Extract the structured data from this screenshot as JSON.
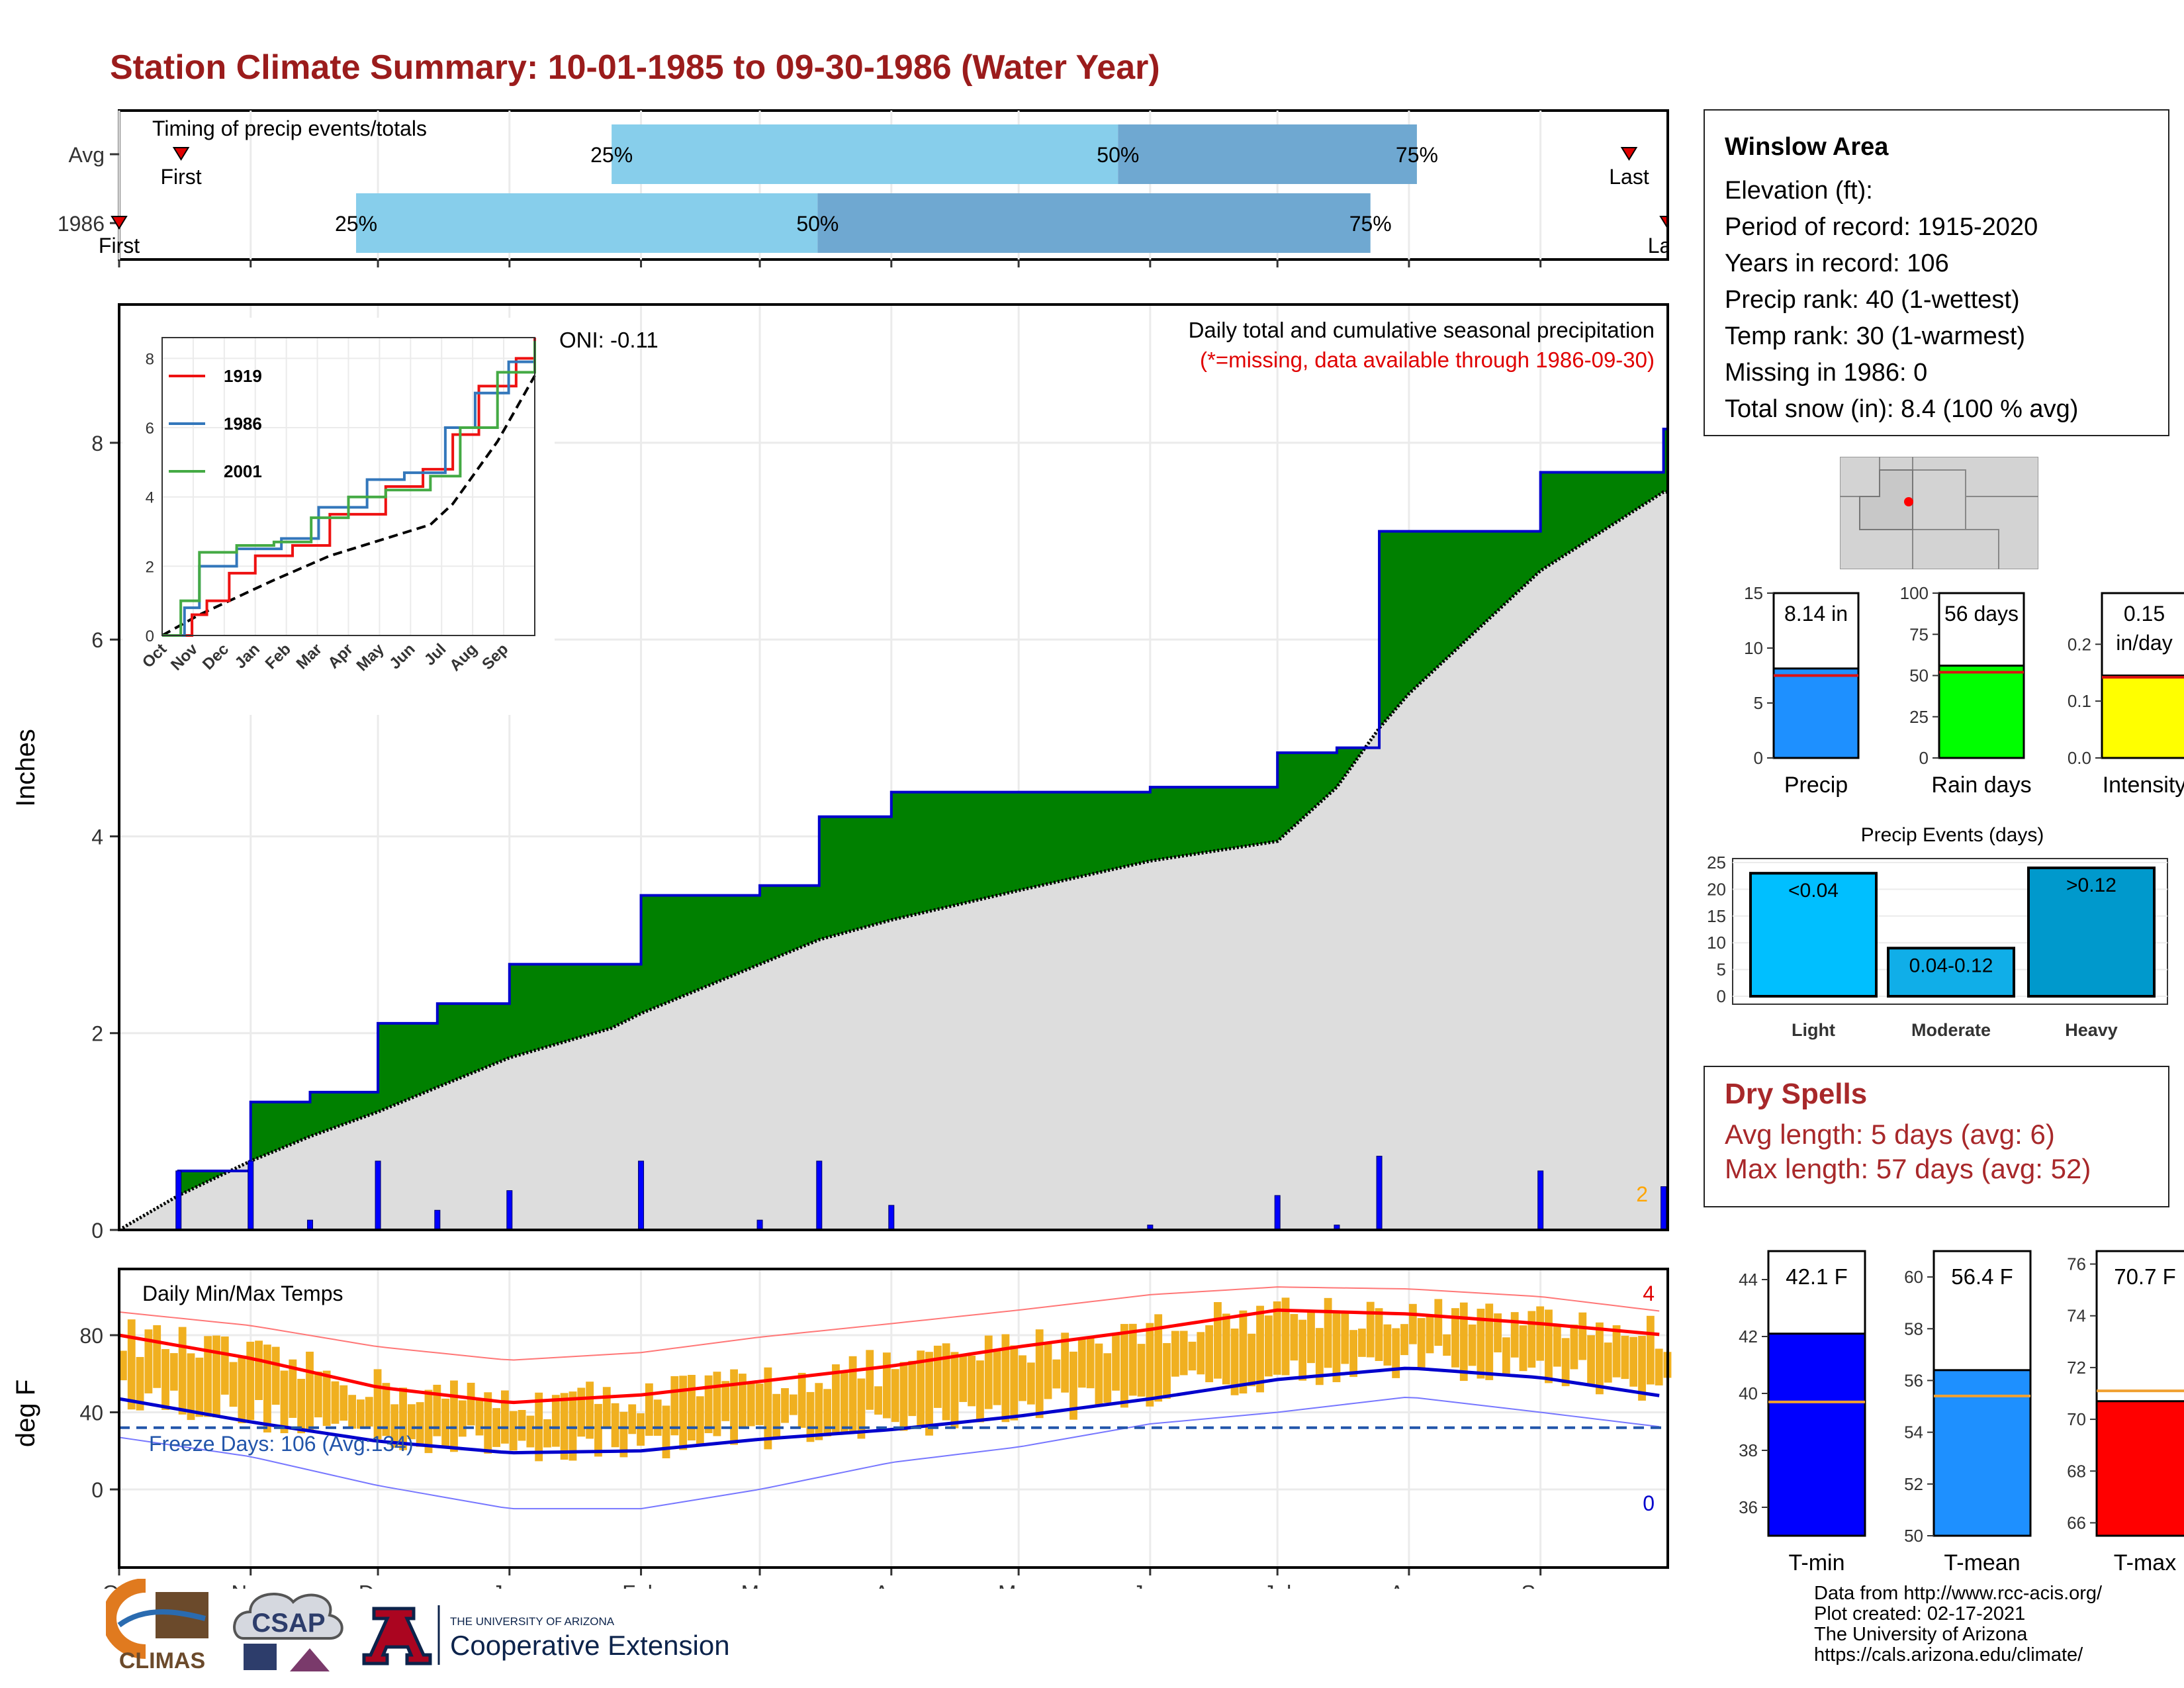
{
  "title": "Station Climate Summary: 10-01-1985 to 09-30-1986 (Water Year)",
  "timing": {
    "label": "Timing of precip events/totals",
    "rows": [
      {
        "name": "Avg",
        "first": 0.04,
        "last": 0.975,
        "p25": 0.318,
        "p50": 0.645,
        "p75": 0.838
      },
      {
        "name": "1986",
        "first": 0.0,
        "last": 1.0,
        "p25": 0.153,
        "p50": 0.451,
        "p75": 0.808
      }
    ],
    "first_label": "First",
    "last_label": "Last",
    "p25_label": "25%",
    "p50_label": "50%",
    "p75_label": "75%",
    "colors": {
      "light": "#87ceeb",
      "dark": "#6fa8d1",
      "marker": "#e00000"
    }
  },
  "precip": {
    "ylabel": "Inches",
    "title": "Daily total and cumulative seasonal precipitation",
    "subtitle": "(*=missing, data available through 1986-09-30)",
    "oni": "ONI: -0.11",
    "corner_label": "2",
    "yticks": [
      "0",
      "2",
      "4",
      "6",
      "8"
    ],
    "colors": {
      "cum": "#008000",
      "avg": "#dddddd",
      "line": "#0000cc",
      "daily": "#0000ff",
      "missing": "#ffa500"
    }
  },
  "inset": {
    "legend": [
      "1919",
      "1986",
      "2001"
    ],
    "legend_colors": [
      "#ee1111",
      "#3377bb",
      "#44aa44"
    ],
    "yticks": [
      "0",
      "2",
      "4",
      "6",
      "8"
    ],
    "xticks": [
      "Oct",
      "Nov",
      "Dec",
      "Jan",
      "Feb",
      "Mar",
      "Apr",
      "May",
      "Jun",
      "Jul",
      "Aug",
      "Sep"
    ]
  },
  "temps": {
    "ylabel": "deg F",
    "title": "Daily Min/Max Temps",
    "freeze": "Freeze Days: 106 (Avg:134)",
    "max_count": "4",
    "min_count": "0",
    "yticks": [
      "0",
      "40",
      "80"
    ],
    "xticks": [
      "Oct",
      "Nov",
      "Dec",
      "Jan",
      "Feb",
      "Mar",
      "Apr",
      "May",
      "Jun",
      "Jul",
      "Aug",
      "Sep"
    ],
    "colors": {
      "bars": "#f0b020",
      "avgmax": "#ff0000",
      "avgmin": "#0000cc",
      "freeze": "#2255aa"
    }
  },
  "station": {
    "name": "Winslow Area",
    "lines": [
      "Elevation (ft):",
      "Period of record: 1915-2020",
      "Years in record: 106",
      "Precip rank: 40 (1-wettest)",
      "Temp rank: 30 (1-warmest)",
      "Missing in 1986: 0",
      "Total snow (in): 8.4 (100 % avg)"
    ]
  },
  "gauges": [
    {
      "name": "Precip",
      "value": 8.14,
      "label": "8.14 in",
      "avg": 7.5,
      "ymax": 15,
      "ticks": [
        "0",
        "5",
        "10",
        "15"
      ],
      "tickvals": [
        0,
        5,
        10,
        15
      ],
      "color": "#1e90ff"
    },
    {
      "name": "Rain days",
      "value": 56,
      "label": "56 days",
      "avg": 52,
      "ymax": 100,
      "ticks": [
        "0",
        "25",
        "50",
        "75",
        "100"
      ],
      "tickvals": [
        0,
        25,
        50,
        75,
        100
      ],
      "color": "#00ff00"
    },
    {
      "name": "Intensity",
      "value": 0.145,
      "label": "0.15",
      "label2": "in/day",
      "avg": 0.142,
      "ymax": 0.29,
      "ticks": [
        "0.0",
        "0.1",
        "0.2"
      ],
      "tickvals": [
        0,
        0.1,
        0.2
      ],
      "color": "#ffff00"
    }
  ],
  "events": {
    "title": "Precip Events (days)",
    "yticks": [
      "0",
      "5",
      "10",
      "15",
      "20",
      "25"
    ],
    "bars": [
      {
        "name": "Light",
        "value": 23,
        "label": "<0.04",
        "color": "#00bfff"
      },
      {
        "name": "Moderate",
        "value": 9,
        "label": "0.04-0.12",
        "color": "#10aee8"
      },
      {
        "name": "Heavy",
        "value": 24,
        "label": ">0.12",
        "color": "#0099cc"
      }
    ]
  },
  "dry": {
    "title": "Dry Spells",
    "avg_length": "Avg length: 5 days (avg: 6)",
    "max_length": "Max length: 57 days (avg: 52)"
  },
  "tgauges": [
    {
      "name": "T-min",
      "value": 42.1,
      "label": "42.1 F",
      "avg": 39.7,
      "ymin": 35,
      "ymax": 45,
      "ticks": [
        "36",
        "38",
        "40",
        "42",
        "44"
      ],
      "tickvals": [
        36,
        38,
        40,
        42,
        44
      ],
      "color": "#0000ff"
    },
    {
      "name": "T-mean",
      "value": 56.4,
      "label": "56.4 F",
      "avg": 55.4,
      "ymin": 50,
      "ymax": 61,
      "ticks": [
        "50",
        "52",
        "54",
        "56",
        "58",
        "60"
      ],
      "tickvals": [
        50,
        52,
        54,
        56,
        58,
        60
      ],
      "color": "#1e90ff"
    },
    {
      "name": "T-max",
      "value": 70.7,
      "label": "70.7 F",
      "avg": 71.1,
      "ymin": 65.5,
      "ymax": 76.5,
      "ticks": [
        "66",
        "68",
        "70",
        "72",
        "74",
        "76"
      ],
      "tickvals": [
        66,
        68,
        70,
        72,
        74,
        76
      ],
      "color": "#ff0000"
    }
  ],
  "credits": [
    "Data from http://www.rcc-acis.org/",
    "Plot created: 02-17-2021",
    "The University of Arizona",
    "https://cals.arizona.edu/climate/"
  ],
  "logos": {
    "climas": "CLIMAS",
    "csap": "CSAP",
    "ua_small": "THE UNIVERSITY OF ARIZONA",
    "ua_big": "Cooperative Extension"
  },
  "chart_data": [
    {
      "type": "area",
      "title": "Daily total and cumulative seasonal precipitation",
      "ylabel": "Inches",
      "ylim": [
        0,
        8.8
      ],
      "x": [
        "1985-10-01",
        "1985-10-15",
        "1985-11-01",
        "1985-11-15",
        "1985-12-01",
        "1985-12-15",
        "1986-01-01",
        "1986-01-25",
        "1986-02-01",
        "1986-03-01",
        "1986-03-15",
        "1986-04-01",
        "1986-05-01",
        "1986-06-01",
        "1986-07-01",
        "1986-07-15",
        "1986-07-25",
        "1986-08-01",
        "1986-09-01",
        "1986-09-30"
      ],
      "series": [
        {
          "name": "1986",
          "values": [
            0,
            0.6,
            1.3,
            1.4,
            2.1,
            2.3,
            2.7,
            2.7,
            3.4,
            3.5,
            4.2,
            4.45,
            4.45,
            4.5,
            4.85,
            4.9,
            7.1,
            7.1,
            7.7,
            8.14
          ]
        },
        {
          "name": "Avg",
          "values": [
            0,
            0.35,
            0.7,
            0.95,
            1.2,
            1.45,
            1.75,
            2.05,
            2.2,
            2.7,
            2.95,
            3.15,
            3.45,
            3.75,
            3.95,
            4.5,
            5.1,
            5.45,
            6.7,
            7.5
          ]
        }
      ]
    },
    {
      "type": "line",
      "title": "Daily Min/Max Temps",
      "ylabel": "deg F",
      "x": [
        "Oct",
        "Nov",
        "Dec",
        "Jan",
        "Feb",
        "Mar",
        "Apr",
        "May",
        "Jun",
        "Jul",
        "Aug",
        "Sep",
        "Oct"
      ],
      "series": [
        {
          "name": "Avg max",
          "values": [
            80,
            68,
            53,
            45,
            49,
            56,
            64,
            74,
            83,
            93,
            91,
            86,
            80
          ]
        },
        {
          "name": "Avg min",
          "values": [
            47,
            35,
            25,
            19,
            20,
            26,
            31,
            38,
            47,
            57,
            63,
            58,
            48
          ]
        },
        {
          "name": "Record max",
          "values": [
            92,
            85,
            74,
            67,
            71,
            79,
            86,
            93,
            101,
            105,
            104,
            100,
            92
          ]
        },
        {
          "name": "Record min",
          "values": [
            27,
            17,
            2,
            -10,
            -10,
            0,
            14,
            22,
            34,
            40,
            48,
            40,
            32
          ]
        }
      ],
      "ylim": [
        -20,
        110
      ],
      "freeze_line": 32
    }
  ]
}
